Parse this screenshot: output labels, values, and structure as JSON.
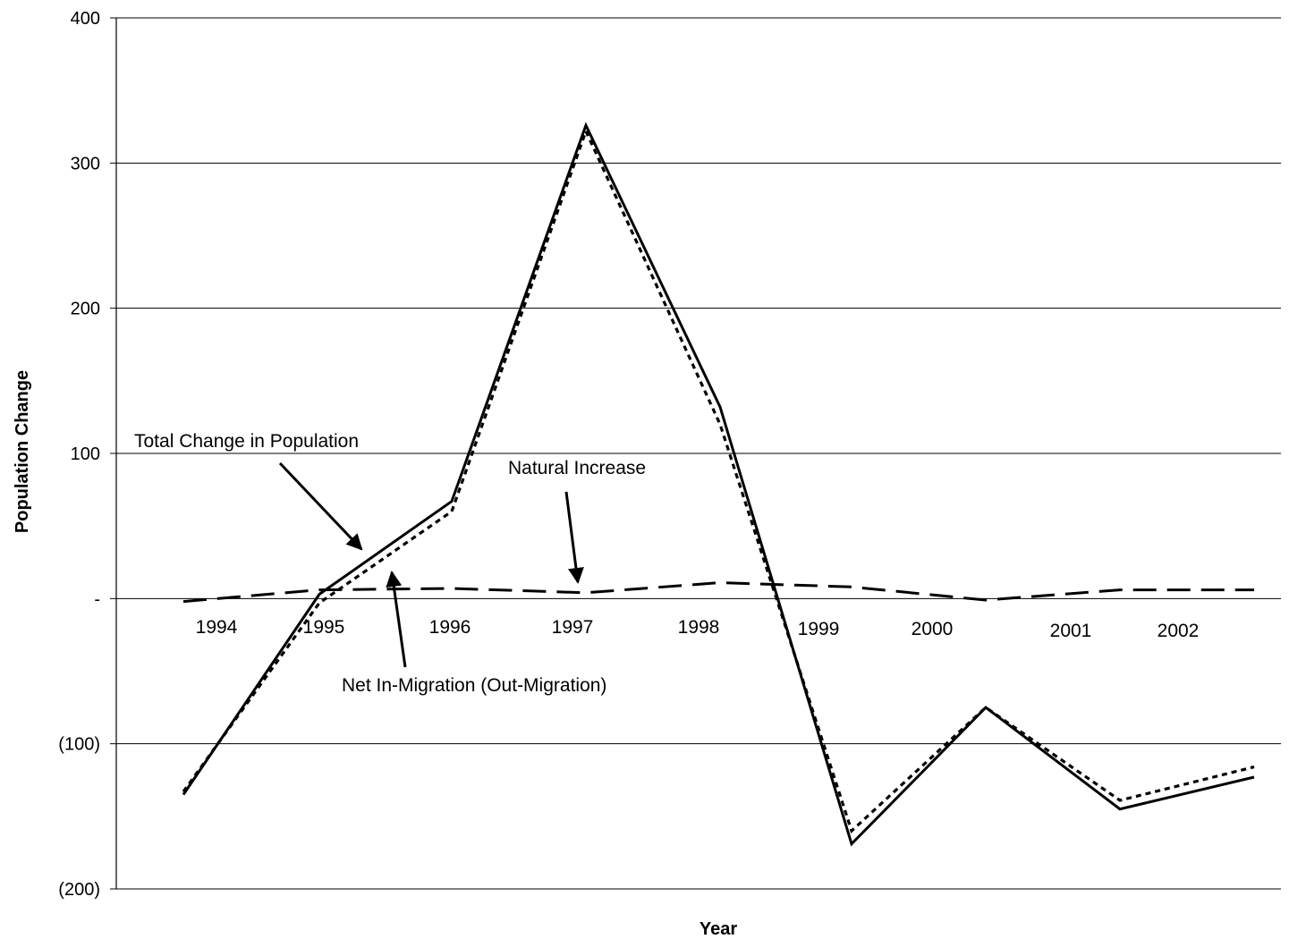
{
  "chart_data": {
    "type": "line",
    "title": "",
    "xlabel": "Year",
    "ylabel": "Population Change",
    "ylim": [
      -200,
      400
    ],
    "y_tick_labels": [
      "(200)",
      "(100)",
      "-",
      "100",
      "200",
      "300",
      "400"
    ],
    "y_tick_values": [
      -200,
      -100,
      0,
      100,
      200,
      300,
      400
    ],
    "grid": true,
    "legend": "none",
    "categories": [
      "1994",
      "1995",
      "1996",
      "1997",
      "1998",
      "1999",
      "2000",
      "2001",
      "2002"
    ],
    "series": [
      {
        "name": "Total Change in Population",
        "style": "solid",
        "values": [
          -135,
          3,
          67,
          326,
          132,
          -169,
          -75,
          -145,
          -123
        ]
      },
      {
        "name": "Net In-Migration (Out-Migration)",
        "style": "dotted",
        "values": [
          -133,
          -3,
          60,
          322,
          120,
          -160,
          -75,
          -139,
          -116
        ]
      },
      {
        "name": "Natural Increase",
        "style": "dashed",
        "values": [
          -2,
          6,
          7,
          4,
          11,
          8,
          -1,
          6,
          6
        ]
      }
    ],
    "annotations": [
      {
        "text": "Total Change in Population",
        "points_to": "Total Change in Population"
      },
      {
        "text": "Natural Increase",
        "points_to": "Natural Increase"
      },
      {
        "text": "Net In-Migration (Out-Migration)",
        "points_to": "Net In-Migration (Out-Migration)"
      }
    ],
    "colors": {
      "line": "#000000",
      "grid": "#000000",
      "background": "#ffffff"
    }
  }
}
